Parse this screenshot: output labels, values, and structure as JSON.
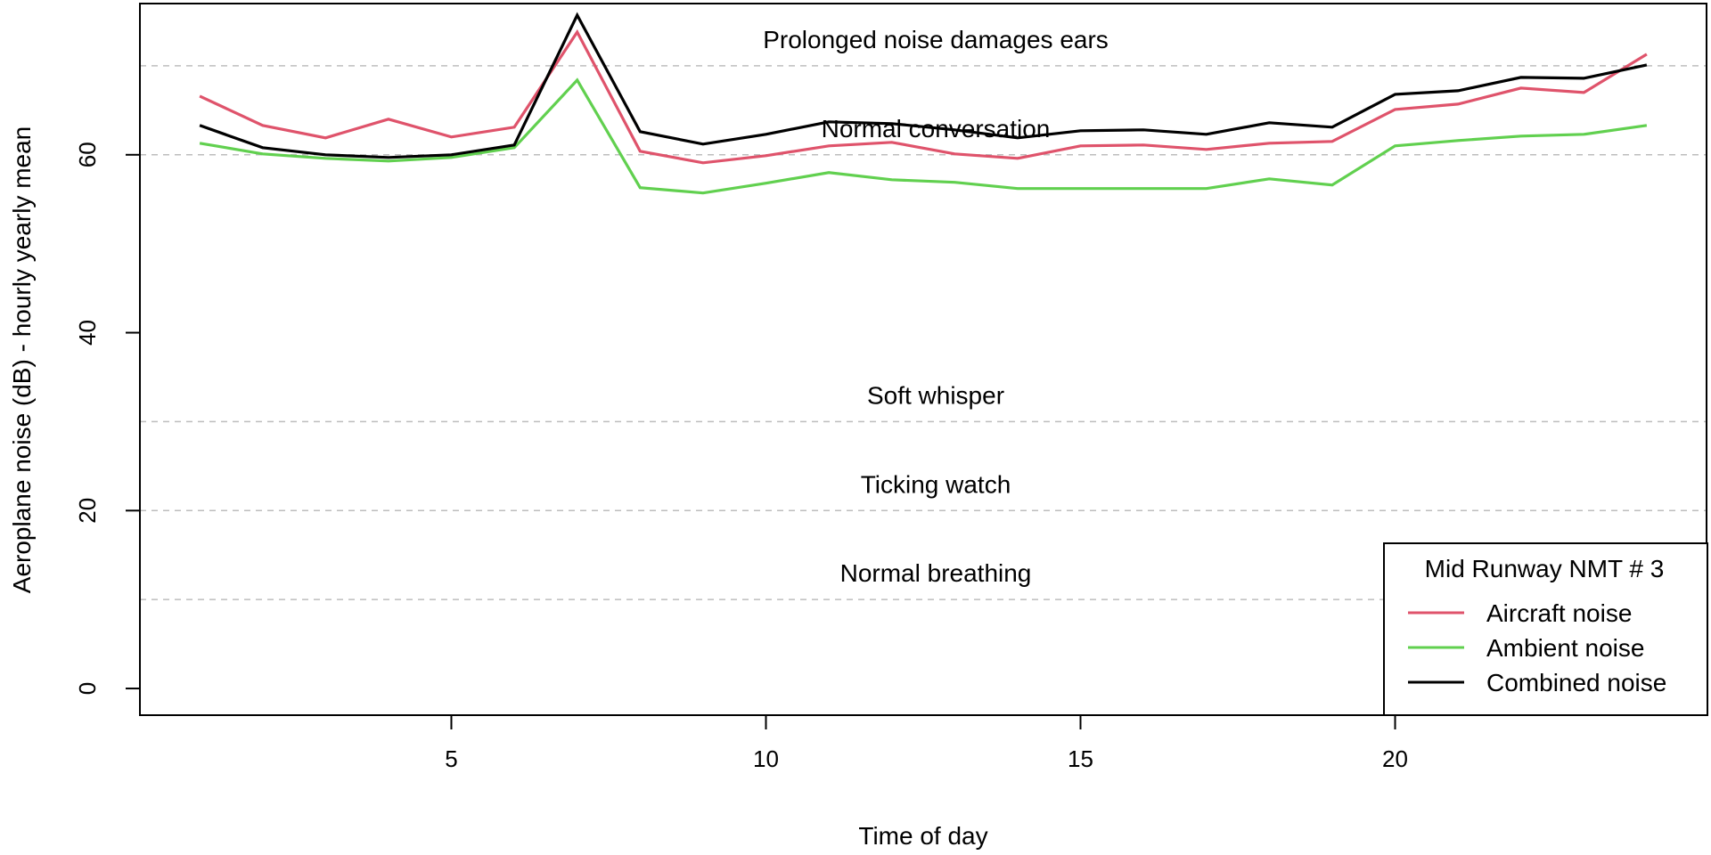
{
  "chart_data": {
    "type": "line",
    "xlabel": "Time of day",
    "ylabel": "Aeroplane noise (dB) - hourly yearly mean",
    "xlim": [
      0.05,
      24.95
    ],
    "ylim": [
      -3,
      77
    ],
    "xticks": [
      5,
      10,
      15,
      20
    ],
    "yticks": [
      0,
      20,
      40,
      60
    ],
    "grid": false,
    "x": [
      1,
      2,
      3,
      4,
      5,
      6,
      7,
      8,
      9,
      10,
      11,
      12,
      13,
      14,
      15,
      16,
      17,
      18,
      19,
      20,
      21,
      22,
      23,
      24
    ],
    "series": [
      {
        "name": "Aircraft noise",
        "color": "#DF536B",
        "values": [
          66.6,
          63.3,
          61.9,
          64.0,
          62.0,
          63.1,
          73.8,
          60.4,
          59.1,
          59.9,
          61.0,
          61.4,
          60.1,
          59.6,
          61.0,
          61.1,
          60.6,
          61.3,
          61.5,
          65.1,
          65.7,
          67.5,
          67.0,
          71.3
        ]
      },
      {
        "name": "Ambient noise",
        "color": "#61D04F",
        "values": [
          61.3,
          60.1,
          59.6,
          59.3,
          59.7,
          60.8,
          68.4,
          56.3,
          55.7,
          56.8,
          58.0,
          57.2,
          56.9,
          56.2,
          56.2,
          56.2,
          56.2,
          57.3,
          56.6,
          61.0,
          61.6,
          62.1,
          62.3,
          63.3
        ]
      },
      {
        "name": "Combined noise",
        "color": "#000000",
        "values": [
          63.3,
          60.8,
          60.0,
          59.7,
          60.0,
          61.1,
          75.7,
          62.6,
          61.2,
          62.3,
          63.7,
          63.5,
          62.8,
          61.9,
          62.7,
          62.8,
          62.3,
          63.6,
          63.1,
          66.8,
          67.2,
          68.7,
          68.6,
          70.1
        ]
      }
    ],
    "reference_lines": [
      {
        "y": 70,
        "label": "Prolonged noise damages ears"
      },
      {
        "y": 60,
        "label": "Normal conversation"
      },
      {
        "y": 30,
        "label": "Soft whisper"
      },
      {
        "y": 20,
        "label": "Ticking watch"
      },
      {
        "y": 10,
        "label": "Normal breathing"
      }
    ],
    "legend": {
      "title": "Mid Runway NMT # 3",
      "position": "bottom-right"
    }
  }
}
